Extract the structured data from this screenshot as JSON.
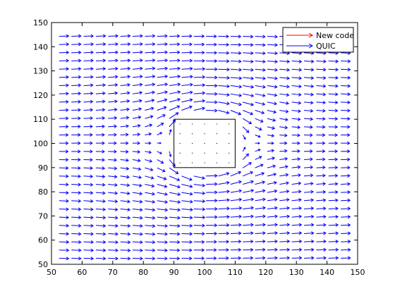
{
  "chart_data": {
    "type": "quiver",
    "title": "",
    "xlabel": "",
    "ylabel": "",
    "xlim": [
      50,
      150
    ],
    "ylim": [
      50,
      150
    ],
    "xticks": [
      "50",
      "60",
      "70",
      "80",
      "90",
      "100",
      "110",
      "120",
      "130",
      "140",
      "150"
    ],
    "yticks": [
      "50",
      "60",
      "70",
      "80",
      "90",
      "100",
      "110",
      "120",
      "130",
      "140",
      "150"
    ],
    "grid": false,
    "legend_position": "top-right",
    "legend": [
      {
        "label": "New code",
        "color": "#ff0000"
      },
      {
        "label": "QUIC",
        "color": "#0000ff"
      }
    ],
    "field": {
      "x_range": [
        52.5,
        150
      ],
      "y_range": [
        52.5,
        147.5
      ],
      "spacing": 4,
      "uniform_flow": [
        1,
        0
      ],
      "obstacle_center": [
        100,
        100
      ],
      "obstacle_halfwidth": 10,
      "obstacle_halfheight": 10
    },
    "obstacle": {
      "x": [
        90,
        110
      ],
      "y": [
        90,
        110
      ]
    },
    "obstacle_grid": {
      "x": [
        92,
        96,
        100,
        104,
        108
      ],
      "y": [
        92,
        96,
        100,
        104,
        108
      ]
    },
    "series": [
      {
        "name": "New code",
        "color": "#ff0000"
      },
      {
        "name": "QUIC",
        "color": "#0000ff"
      }
    ]
  }
}
